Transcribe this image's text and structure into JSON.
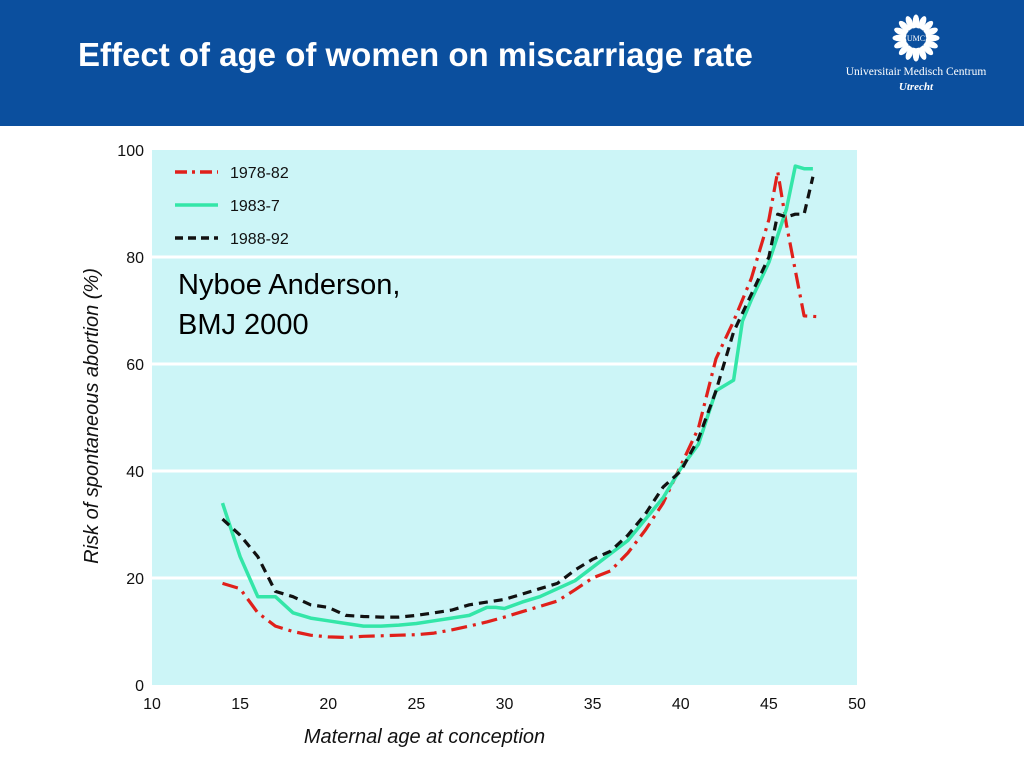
{
  "header": {
    "title": "Effect of age of women on miscarriage rate",
    "logo": {
      "emblem_text": "UMC",
      "name": "Universitair Medisch Centrum",
      "city": "Utrecht",
      "icon": "umc-sunburst-logo-icon",
      "color": "#ffffff"
    },
    "background_color": "#0b4f9e"
  },
  "chart_data": {
    "type": "line",
    "xlabel": "Maternal age at conception",
    "ylabel": "Risk of spontaneous abortion (%)",
    "xlim": [
      10,
      50
    ],
    "ylim": [
      0,
      100
    ],
    "xticks": [
      10,
      15,
      20,
      25,
      30,
      35,
      40,
      45,
      50
    ],
    "yticks": [
      0,
      20,
      40,
      60,
      80,
      100
    ],
    "grid": "horizontal",
    "background_color": "#ccf5f7",
    "legend_position": "top-left",
    "annotation": [
      "Nyboe Anderson,",
      "BMJ 2000"
    ],
    "series": [
      {
        "name": "1978-82",
        "color": "#e0201b",
        "style": "dash-dot",
        "x": [
          14,
          15,
          16,
          17,
          18,
          19,
          20,
          21,
          22,
          23,
          24,
          25,
          26,
          27,
          28,
          29,
          30,
          31,
          32,
          33,
          34,
          35,
          36,
          37,
          38,
          39,
          40,
          41,
          42,
          43,
          44,
          45,
          45.5,
          46,
          47,
          48
        ],
        "y": [
          19,
          18,
          13.5,
          11,
          10,
          9.3,
          9,
          8.9,
          9.1,
          9.2,
          9.3,
          9.4,
          9.7,
          10.3,
          11,
          11.8,
          12.7,
          13.7,
          14.7,
          15.7,
          17.8,
          20,
          21.3,
          24.7,
          29,
          34,
          41,
          48,
          61,
          68,
          76,
          87,
          96,
          86,
          69,
          68.8
        ]
      },
      {
        "name": "1983-7",
        "color": "#33e6a8",
        "style": "solid",
        "x": [
          14,
          15,
          16,
          17,
          18,
          19,
          20,
          21,
          22,
          23,
          24,
          25,
          26,
          27,
          28,
          29,
          29.5,
          30,
          31,
          32,
          33,
          34,
          35,
          36,
          37,
          38,
          39,
          40,
          41,
          42,
          43,
          43.5,
          44,
          45,
          45.5,
          46,
          46.5,
          47,
          47.5
        ],
        "y": [
          34,
          24,
          16.5,
          16.5,
          13.5,
          12.5,
          12,
          11.5,
          11,
          11,
          11.2,
          11.5,
          12,
          12.5,
          13,
          14.5,
          14.5,
          14.3,
          15.5,
          16.5,
          18,
          19.5,
          22,
          24.5,
          27,
          31,
          35,
          40.5,
          45,
          55,
          57,
          68,
          72,
          79,
          84,
          89,
          97,
          96.5,
          96.5
        ]
      },
      {
        "name": "1988-92",
        "color": "#111111",
        "style": "dashed",
        "x": [
          14,
          15,
          16,
          17,
          18,
          19,
          20,
          21,
          22,
          23,
          24,
          25,
          26,
          27,
          28,
          29,
          30,
          31,
          32,
          33,
          34,
          35,
          36,
          37,
          38,
          39,
          40,
          41,
          42,
          43,
          44,
          45,
          45.5,
          46,
          46.5,
          47,
          47.5
        ],
        "y": [
          31,
          28,
          24,
          17.5,
          16.5,
          15,
          14.5,
          13,
          12.8,
          12.7,
          12.7,
          13,
          13.5,
          14,
          15,
          15.5,
          16,
          17,
          18,
          19,
          21.5,
          23.5,
          25,
          28,
          32,
          37,
          40,
          46,
          55,
          66,
          73,
          80,
          88,
          87.5,
          88,
          88,
          95
        ]
      }
    ]
  }
}
